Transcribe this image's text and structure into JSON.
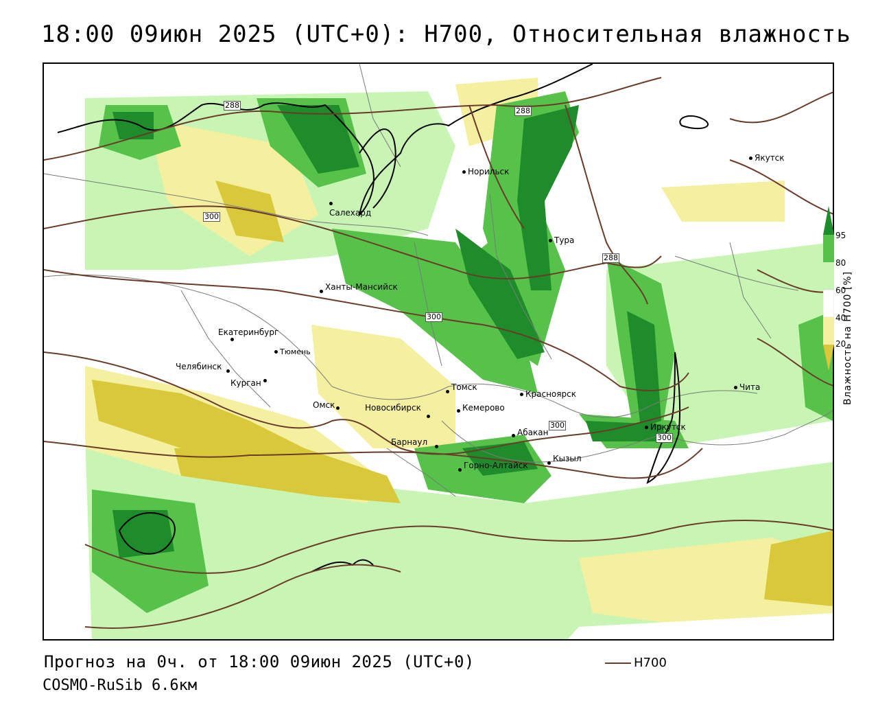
{
  "title": "18:00 09июн 2025 (UTC+0): H700, Относительная влажность",
  "footer": {
    "forecast": "Прогноз на 0ч. от 18:00 09июн 2025 (UTC+0)",
    "model": "COSMO-RuSib 6.6км",
    "key_label": "H700"
  },
  "legend": {
    "label": "Влажность на H700 [%]",
    "ticks": [
      "95",
      "80",
      "60",
      "40",
      "20"
    ],
    "colors": {
      "95": "#1e8c2a",
      "80": "#56c24a",
      "60": "#c8f5b4",
      "40": "#ffffff",
      "20": "#f5f0a0",
      "low": "#d9c83a"
    }
  },
  "cities": [
    {
      "name": "Салехард"
    },
    {
      "name": "Норильск"
    },
    {
      "name": "Якутск"
    },
    {
      "name": "Тура"
    },
    {
      "name": "Ханты-Мансийск"
    },
    {
      "name": "Екатеринбург"
    },
    {
      "name": "Тюмень"
    },
    {
      "name": "Челябинск"
    },
    {
      "name": "Курган"
    },
    {
      "name": "Омск"
    },
    {
      "name": "Новосибирск"
    },
    {
      "name": "Томск"
    },
    {
      "name": "Кемерово"
    },
    {
      "name": "Красноярск"
    },
    {
      "name": "Барнаул"
    },
    {
      "name": "Абакан"
    },
    {
      "name": "Горно-Алтайск"
    },
    {
      "name": "Кызыл"
    },
    {
      "name": "Иркутск"
    },
    {
      "name": "Чита"
    }
  ],
  "isolines": [
    "288",
    "288",
    "300",
    "300",
    "288",
    "300",
    "300"
  ],
  "colors": {
    "contour": "#6b3b2a",
    "coast": "#000000",
    "border": "#7a7a7a"
  }
}
